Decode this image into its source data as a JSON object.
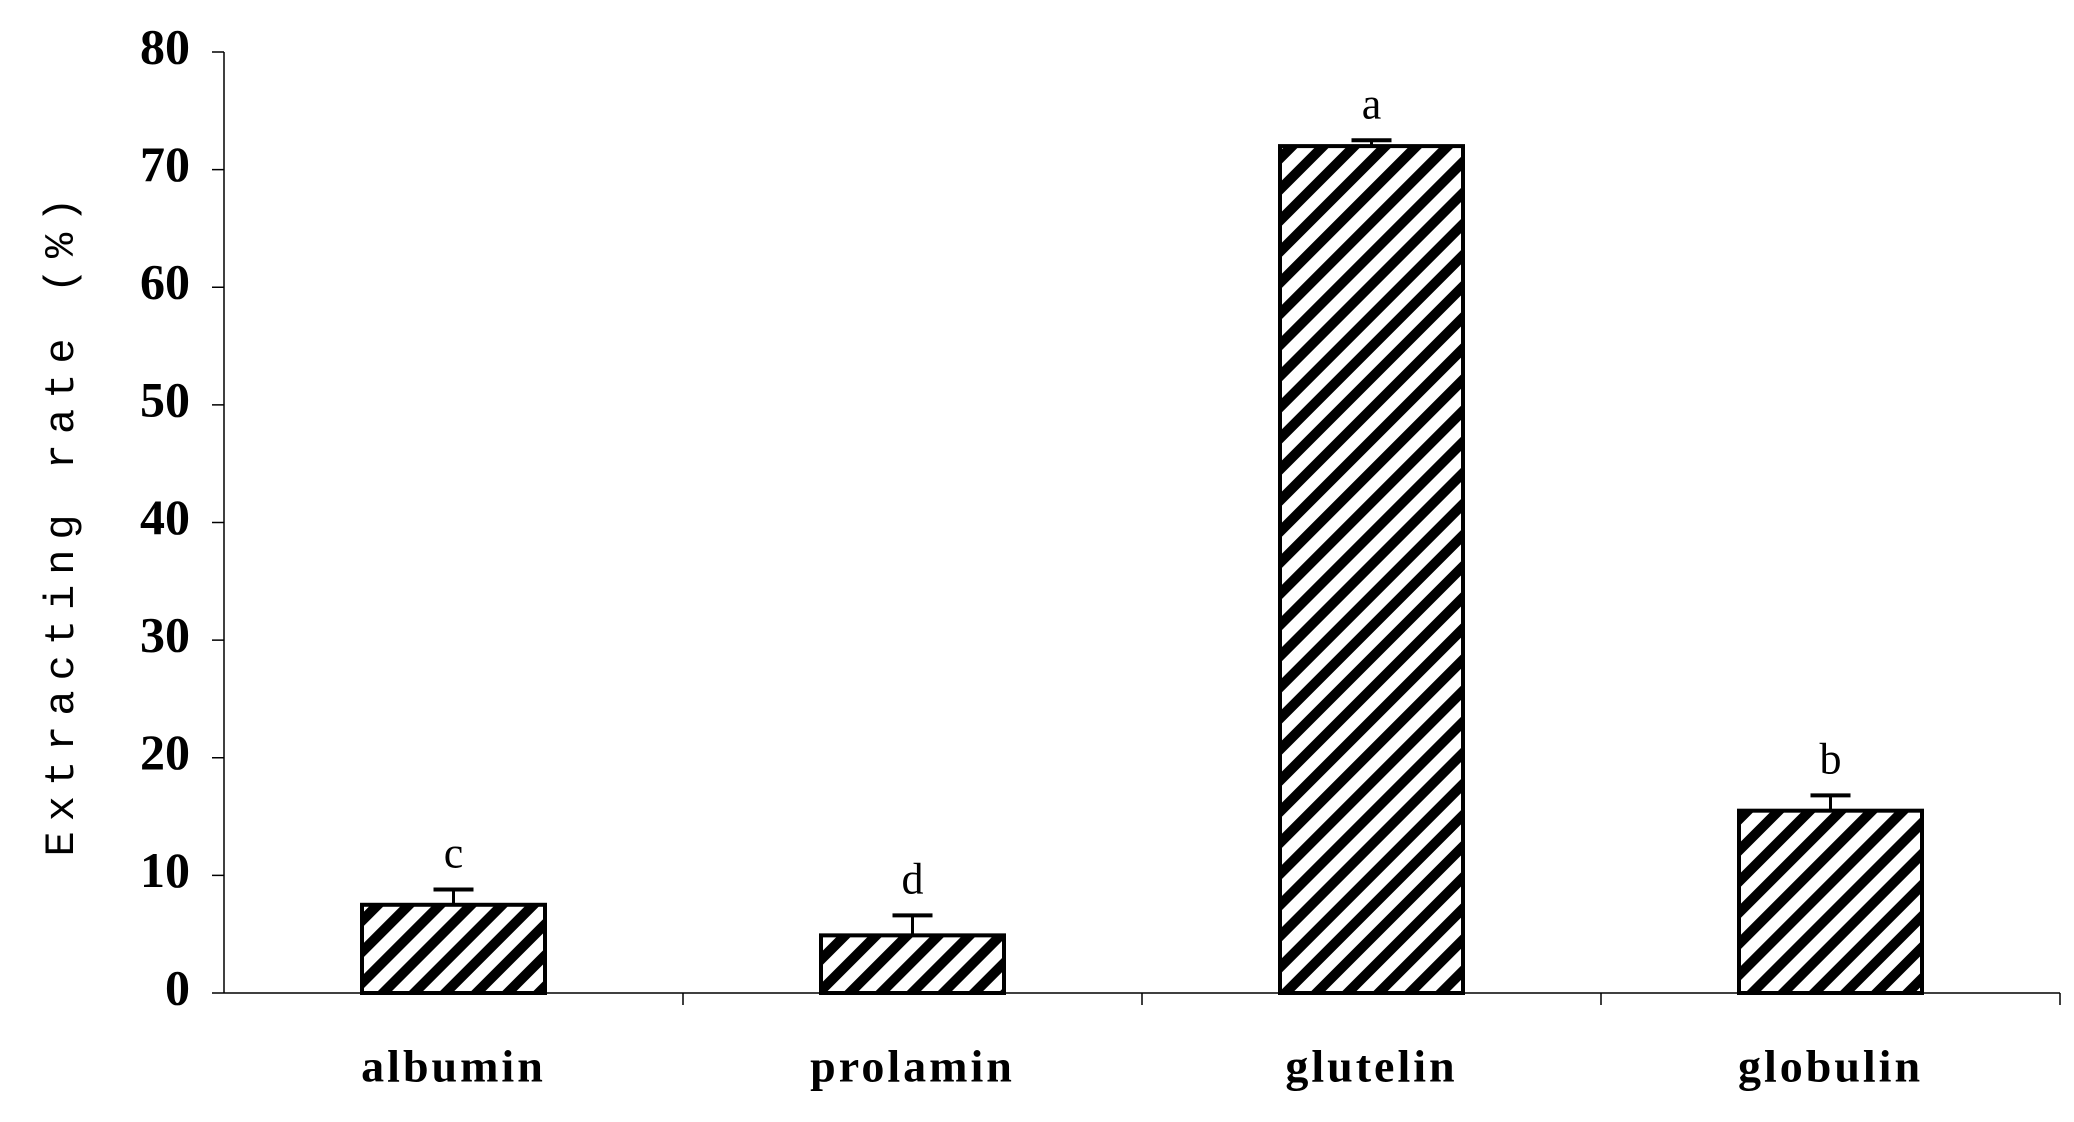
{
  "chart_data": {
    "type": "bar",
    "y_label": "Extracting rate (%)",
    "categories": [
      "albumin",
      "prolamin",
      "glutelin",
      "globulin"
    ],
    "values": [
      7.5,
      4.9,
      72,
      15.5
    ],
    "errors": [
      1.3,
      1.7,
      0.5,
      1.3
    ],
    "significance_letters": [
      "c",
      "d",
      "a",
      "b"
    ],
    "color": "#000000",
    "pattern": "diagonal-hatch",
    "ylim": [
      0,
      80
    ],
    "yticks": [
      0,
      10,
      20,
      30,
      40,
      50,
      60,
      70,
      80
    ],
    "grid": false
  }
}
